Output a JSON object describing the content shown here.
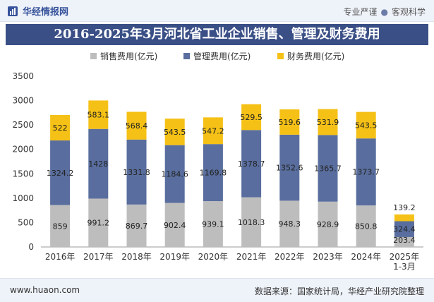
{
  "header": {
    "brand": "华经情报网",
    "tagline_left": "专业严谨",
    "tagline_right": "客观科学"
  },
  "chart_data": {
    "type": "bar",
    "stacked": true,
    "title": "2016-2025年3月河北省工业企业销售、管理及财务费用",
    "categories": [
      "2016年",
      "2017年",
      "2018年",
      "2019年",
      "2020年",
      "2021年",
      "2022年",
      "2023年",
      "2024年",
      "2025年 1-3月"
    ],
    "series": [
      {
        "name": "销售费用(亿元)",
        "color": "#bdbdbd",
        "values": [
          859,
          991.2,
          869.7,
          902.4,
          939.1,
          1018.3,
          948.3,
          928.9,
          850.8,
          203.4
        ]
      },
      {
        "name": "管理费用(亿元)",
        "color": "#596e9e",
        "values": [
          1324.2,
          1428,
          1331.8,
          1184.6,
          1169.8,
          1378.7,
          1352.6,
          1365.7,
          1373.7,
          324.4
        ]
      },
      {
        "name": "财务费用(亿元)",
        "color": "#f5c116",
        "values": [
          522,
          583.1,
          568.4,
          543.5,
          547.2,
          529.5,
          519.6,
          531.9,
          543.5,
          139.2
        ]
      }
    ],
    "ylim": [
      0,
      3500
    ],
    "yticks": [
      0,
      500,
      1000,
      1500,
      2000,
      2500,
      3000,
      3500
    ],
    "xlabel": "",
    "ylabel": "",
    "legend_position": "top"
  },
  "footer": {
    "url": "www.huaon.com",
    "source": "数据来源：国家统计局，华经产业研究院整理"
  }
}
